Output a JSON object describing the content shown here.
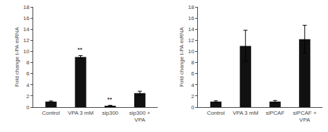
{
  "chart_data": [
    {
      "type": "bar",
      "categories": [
        "Control",
        "VPA 3 mM",
        "sip300",
        "sip300 +\nVPA"
      ],
      "values": [
        1.0,
        9.0,
        0.25,
        2.5
      ],
      "errors": [
        0.12,
        0.25,
        0.08,
        0.35
      ],
      "color": "#111111",
      "ylabel": "Fold change t-PA mRNA",
      "ylim": [
        0,
        18
      ],
      "yticks": [
        0,
        2,
        4,
        6,
        8,
        10,
        12,
        14,
        16,
        18
      ],
      "grid": false,
      "annotations": [
        {
          "text": "**",
          "x": "VPA 3 mM",
          "y": 9.3
        },
        {
          "text": "**",
          "x": "sip300",
          "y": 0.38
        }
      ]
    },
    {
      "type": "bar",
      "categories": [
        "Control",
        "VPA 3 mM",
        "siPCAF",
        "siPCAF +\nVPA"
      ],
      "values": [
        1.0,
        11.0,
        1.0,
        12.2
      ],
      "errors": [
        0.15,
        2.8,
        0.2,
        2.5
      ],
      "color": "#111111",
      "ylabel": "Fold change t-PA mRNA",
      "ylim": [
        0,
        18
      ],
      "yticks": [
        0,
        2,
        4,
        6,
        8,
        10,
        12,
        14,
        16,
        18
      ],
      "grid": false
    }
  ]
}
